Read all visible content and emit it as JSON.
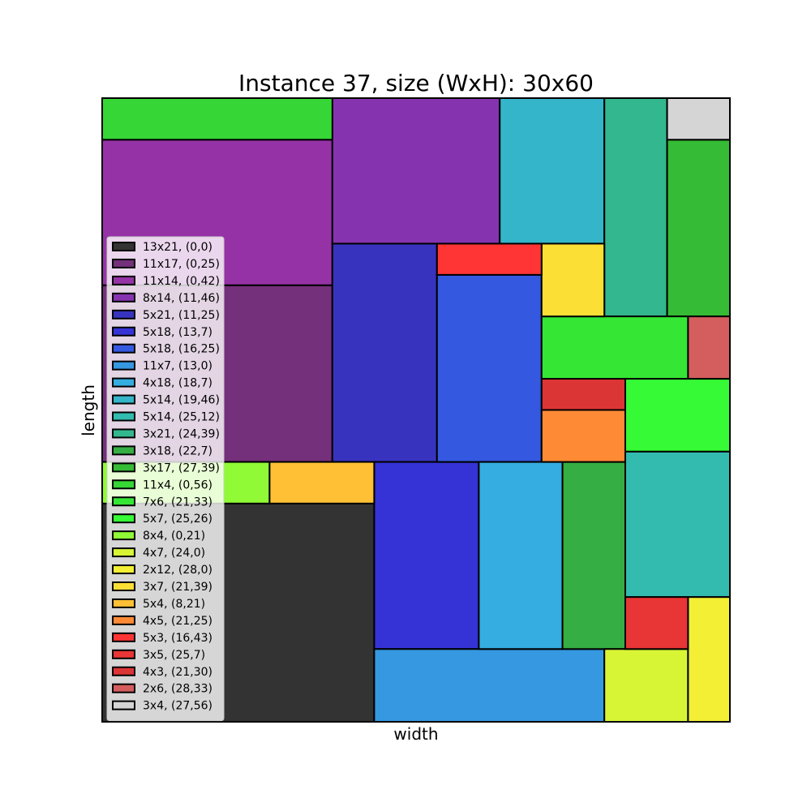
{
  "chart_data": {
    "type": "packing",
    "title": "Instance 37, size (WxH): 30x60",
    "xlabel": "width",
    "ylabel": "length",
    "container": {
      "width": 30,
      "height": 60
    },
    "xlim": [
      0,
      30
    ],
    "ylim": [
      0,
      60
    ],
    "grid": false,
    "legend_position": "left",
    "rectangles": [
      {
        "label": "13x21, (0,0)",
        "w": 13,
        "h": 21,
        "x": 0,
        "y": 0,
        "color": "#333333"
      },
      {
        "label": "11x17, (0,25)",
        "w": 11,
        "h": 17,
        "x": 0,
        "y": 25,
        "color": "#74307a"
      },
      {
        "label": "11x14, (0,42)",
        "w": 11,
        "h": 14,
        "x": 0,
        "y": 42,
        "color": "#9533a6"
      },
      {
        "label": "8x14, (11,46)",
        "w": 8,
        "h": 14,
        "x": 11,
        "y": 46,
        "color": "#8633b0"
      },
      {
        "label": "5x21, (11,25)",
        "w": 5,
        "h": 21,
        "x": 11,
        "y": 25,
        "color": "#3833bf"
      },
      {
        "label": "5x18, (13,7)",
        "w": 5,
        "h": 18,
        "x": 13,
        "y": 7,
        "color": "#3533d6"
      },
      {
        "label": "5x18, (16,25)",
        "w": 5,
        "h": 18,
        "x": 16,
        "y": 25,
        "color": "#3558e0"
      },
      {
        "label": "11x7, (13,0)",
        "w": 11,
        "h": 7,
        "x": 13,
        "y": 0,
        "color": "#3598e0"
      },
      {
        "label": "4x18, (18,7)",
        "w": 4,
        "h": 18,
        "x": 18,
        "y": 7,
        "color": "#35ade0"
      },
      {
        "label": "5x14, (19,46)",
        "w": 5,
        "h": 14,
        "x": 19,
        "y": 46,
        "color": "#35b5c9"
      },
      {
        "label": "5x14, (25,12)",
        "w": 5,
        "h": 14,
        "x": 25,
        "y": 12,
        "color": "#33bbaf"
      },
      {
        "label": "3x21, (24,39)",
        "w": 3,
        "h": 21,
        "x": 24,
        "y": 39,
        "color": "#33b78e"
      },
      {
        "label": "3x18, (22,7)",
        "w": 3,
        "h": 18,
        "x": 22,
        "y": 7,
        "color": "#35ae43"
      },
      {
        "label": "3x17, (27,39)",
        "w": 3,
        "h": 17,
        "x": 27,
        "y": 39,
        "color": "#35bb35"
      },
      {
        "label": "11x4, (0,56)",
        "w": 11,
        "h": 4,
        "x": 0,
        "y": 56,
        "color": "#35d635"
      },
      {
        "label": "7x6, (21,33)",
        "w": 7,
        "h": 6,
        "x": 21,
        "y": 33,
        "color": "#35e635"
      },
      {
        "label": "5x7, (25,26)",
        "w": 5,
        "h": 7,
        "x": 25,
        "y": 26,
        "color": "#35fa35"
      },
      {
        "label": "8x4, (0,21)",
        "w": 8,
        "h": 4,
        "x": 0,
        "y": 21,
        "color": "#8ffa35"
      },
      {
        "label": "4x7, (24,0)",
        "w": 4,
        "h": 7,
        "x": 24,
        "y": 0,
        "color": "#d8f535"
      },
      {
        "label": "2x12, (28,0)",
        "w": 2,
        "h": 12,
        "x": 28,
        "y": 0,
        "color": "#f2ef35"
      },
      {
        "label": "3x7, (21,39)",
        "w": 3,
        "h": 7,
        "x": 21,
        "y": 39,
        "color": "#fcdf35"
      },
      {
        "label": "5x4, (8,21)",
        "w": 5,
        "h": 4,
        "x": 8,
        "y": 21,
        "color": "#ffc035"
      },
      {
        "label": "4x5, (21,25)",
        "w": 4,
        "h": 5,
        "x": 21,
        "y": 25,
        "color": "#ff8a35"
      },
      {
        "label": "5x3, (16,43)",
        "w": 5,
        "h": 3,
        "x": 16,
        "y": 43,
        "color": "#ff3535"
      },
      {
        "label": "3x5, (25,7)",
        "w": 3,
        "h": 5,
        "x": 25,
        "y": 7,
        "color": "#e83535"
      },
      {
        "label": "4x3, (21,30)",
        "w": 4,
        "h": 3,
        "x": 21,
        "y": 30,
        "color": "#dc3535"
      },
      {
        "label": "2x6, (28,33)",
        "w": 2,
        "h": 6,
        "x": 28,
        "y": 33,
        "color": "#d45d5d"
      },
      {
        "label": "3x4, (27,56)",
        "w": 3,
        "h": 4,
        "x": 27,
        "y": 56,
        "color": "#d5d5d5"
      }
    ]
  }
}
